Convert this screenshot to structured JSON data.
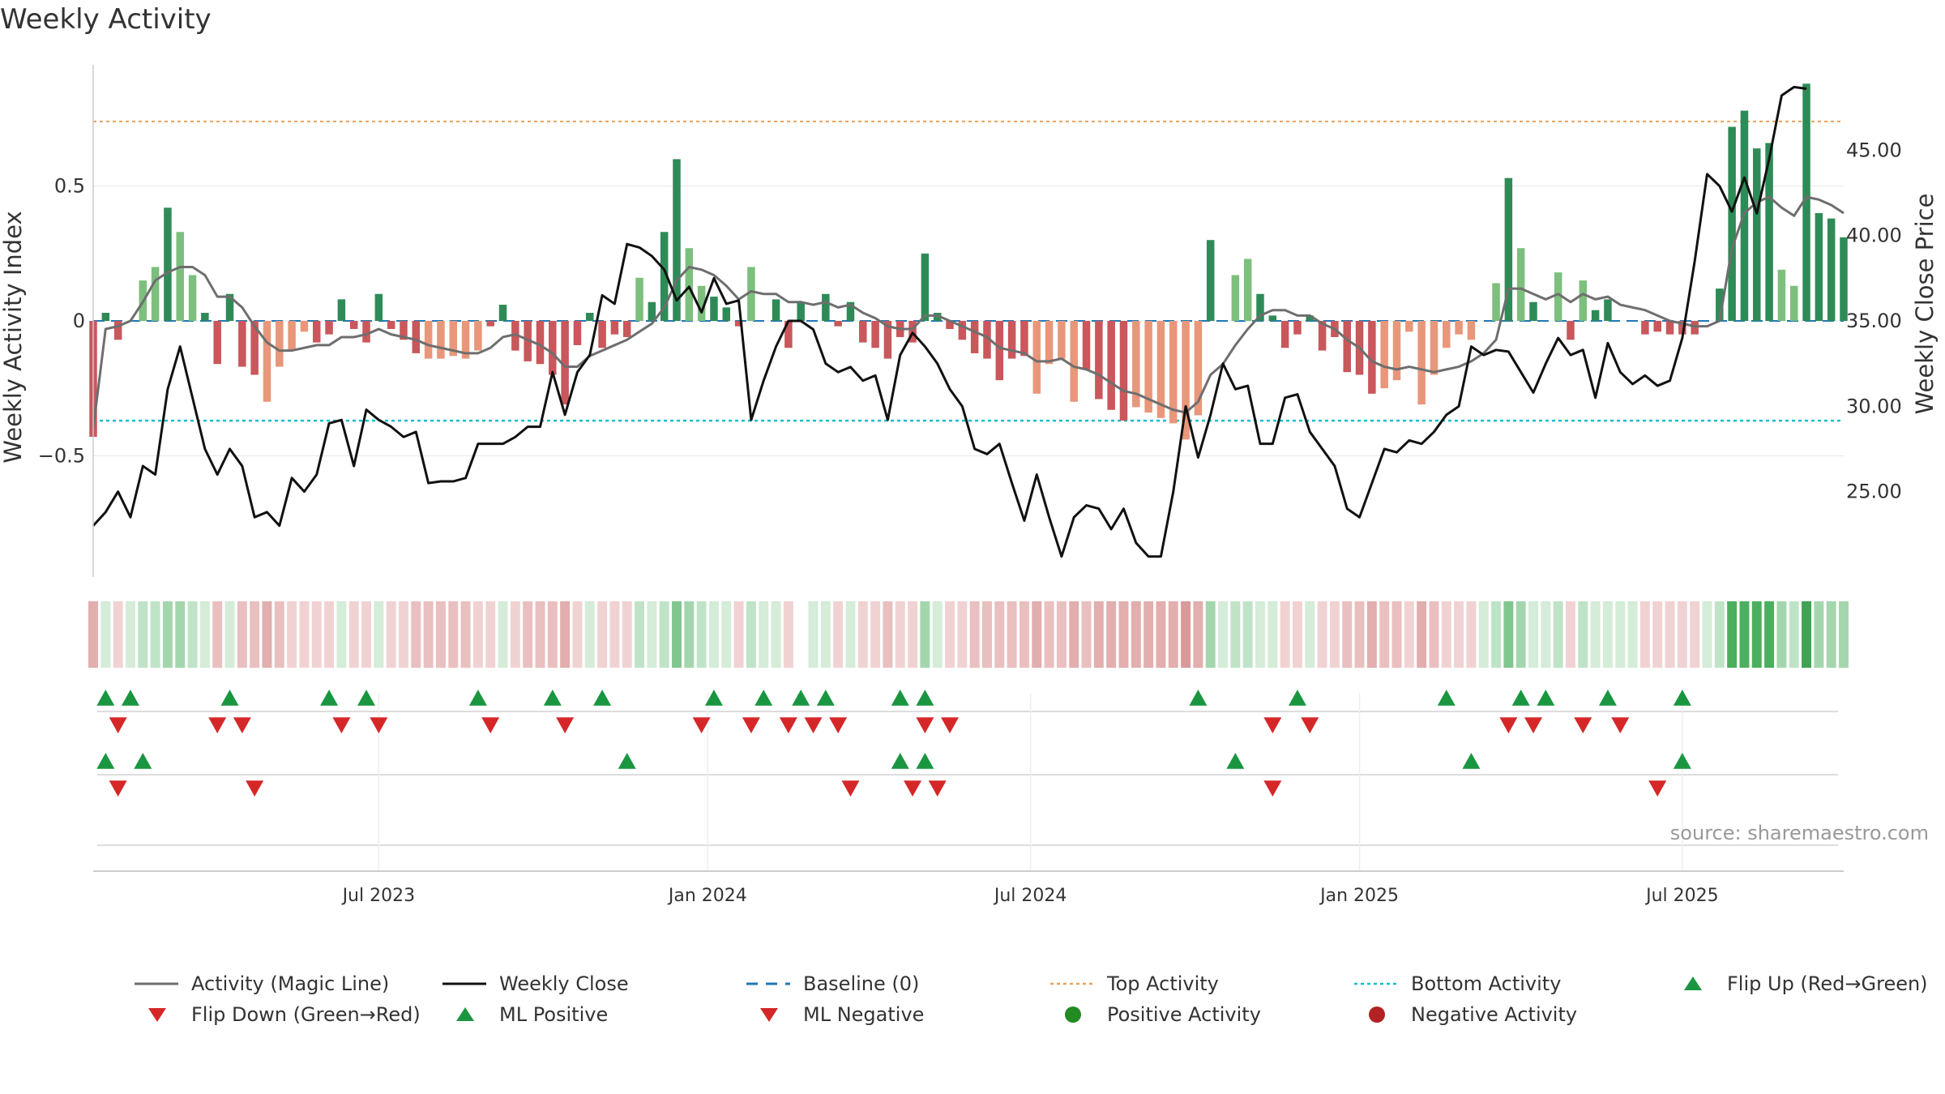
{
  "title": "Weekly Activity",
  "source": "source: sharemaestro.com",
  "legend": [
    {
      "label": "Activity (Magic Line)",
      "icon": "line-gray"
    },
    {
      "label": "Weekly Close",
      "icon": "line-black"
    },
    {
      "label": "Baseline (0)",
      "icon": "dash-blue"
    },
    {
      "label": "Top Activity",
      "icon": "dot-orange"
    },
    {
      "label": "Bottom Activity",
      "icon": "dot-cyan"
    },
    {
      "label": "Flip Up (Red→Green)",
      "icon": "triangle-up-green"
    },
    {
      "label": "Flip Down (Green→Red)",
      "icon": "triangle-down-red"
    },
    {
      "label": "ML Positive",
      "icon": "triangle-up-green"
    },
    {
      "label": "ML Negative",
      "icon": "triangle-down-red"
    },
    {
      "label": "Positive Activity",
      "icon": "circle-green"
    },
    {
      "label": "Negative Activity",
      "icon": "circle-red"
    }
  ],
  "colors": {
    "pos_strong": "#2e8b57",
    "pos_light": "#7dbf7d",
    "neg_strong": "#c9575b",
    "neg_light": "#e8977a",
    "magic_line": "#6e6e6e",
    "close_line": "#111111",
    "baseline": "#1f77b4",
    "top_line": "#e8a25c",
    "bottom_line": "#17becf",
    "up_marker": "#1a9641",
    "down_marker": "#d62728"
  },
  "chart_data": {
    "type": "bar",
    "title": "Weekly Activity",
    "ylabel": "Weekly Activity Index",
    "y2label": "Weekly Close Price",
    "ylim": [
      -0.95,
      0.95
    ],
    "y2lim": [
      20.0,
      50.0
    ],
    "y_ticks": [
      -0.5,
      0,
      0.5
    ],
    "y_tick_labels": [
      "−0.5",
      "0",
      "0.5"
    ],
    "y2_ticks": [
      25.0,
      30.0,
      35.0,
      40.0,
      45.0
    ],
    "y2_tick_labels": [
      "25.00",
      "30.00",
      "35.00",
      "40.00",
      "45.00"
    ],
    "x_ticks": [
      {
        "label": "Jul 2023",
        "week": 23
      },
      {
        "label": "Jan 2024",
        "week": 49.5
      },
      {
        "label": "Jul 2024",
        "week": 75.5
      },
      {
        "label": "Jan 2025",
        "week": 102
      },
      {
        "label": "Jul 2025",
        "week": 128
      }
    ],
    "top_activity": 0.74,
    "bottom_activity": -0.37,
    "baseline": 0,
    "grid": true,
    "legend_position": "bottom",
    "activity": [
      -0.43,
      0.03,
      -0.07,
      0.0,
      0.15,
      0.2,
      0.42,
      0.33,
      0.17,
      0.03,
      -0.16,
      0.1,
      -0.17,
      -0.2,
      -0.3,
      -0.17,
      -0.11,
      -0.04,
      -0.08,
      -0.05,
      0.08,
      -0.03,
      -0.08,
      0.1,
      -0.03,
      -0.07,
      -0.12,
      -0.14,
      -0.14,
      -0.13,
      -0.14,
      -0.11,
      -0.02,
      0.06,
      -0.11,
      -0.15,
      -0.16,
      -0.2,
      -0.31,
      -0.09,
      0.03,
      -0.1,
      -0.05,
      -0.06,
      0.16,
      0.07,
      0.33,
      0.6,
      0.27,
      0.13,
      0.09,
      0.05,
      -0.02,
      0.2,
      0.0,
      0.08,
      -0.1,
      0.07,
      0.0,
      0.1,
      -0.02,
      0.07,
      -0.08,
      -0.1,
      -0.14,
      -0.06,
      -0.08,
      0.25,
      0.03,
      -0.03,
      -0.07,
      -0.12,
      -0.14,
      -0.22,
      -0.14,
      -0.13,
      -0.27,
      -0.16,
      -0.14,
      -0.3,
      -0.18,
      -0.29,
      -0.33,
      -0.37,
      -0.32,
      -0.34,
      -0.36,
      -0.38,
      -0.44,
      -0.35,
      0.3,
      0.0,
      0.17,
      0.23,
      0.1,
      0.02,
      -0.1,
      -0.05,
      0.02,
      -0.11,
      -0.06,
      -0.19,
      -0.2,
      -0.27,
      -0.25,
      -0.22,
      -0.04,
      -0.31,
      -0.2,
      -0.1,
      -0.05,
      -0.07,
      0.0,
      0.14,
      0.53,
      0.27,
      0.07,
      0.0,
      0.18,
      -0.07,
      0.15,
      0.04,
      0.08,
      0.0,
      0.0,
      -0.05,
      -0.04,
      -0.05,
      -0.05,
      -0.05,
      0.0,
      0.12,
      0.72,
      0.78,
      0.64,
      0.66,
      0.19,
      0.13,
      0.88,
      0.4,
      0.38,
      0.31
    ],
    "magic_line": [
      -0.4,
      -0.03,
      -0.02,
      0.0,
      0.07,
      0.15,
      0.18,
      0.2,
      0.2,
      0.17,
      0.09,
      0.09,
      0.05,
      -0.02,
      -0.08,
      -0.11,
      -0.11,
      -0.1,
      -0.09,
      -0.09,
      -0.06,
      -0.06,
      -0.05,
      -0.03,
      -0.05,
      -0.06,
      -0.07,
      -0.09,
      -0.1,
      -0.11,
      -0.12,
      -0.12,
      -0.1,
      -0.06,
      -0.05,
      -0.07,
      -0.09,
      -0.12,
      -0.17,
      -0.17,
      -0.13,
      -0.11,
      -0.09,
      -0.07,
      -0.04,
      -0.01,
      0.05,
      0.15,
      0.2,
      0.19,
      0.17,
      0.13,
      0.08,
      0.11,
      0.1,
      0.1,
      0.07,
      0.07,
      0.06,
      0.07,
      0.05,
      0.06,
      0.03,
      0.01,
      -0.02,
      -0.03,
      -0.03,
      0.02,
      0.02,
      0.0,
      -0.02,
      -0.04,
      -0.06,
      -0.1,
      -0.11,
      -0.12,
      -0.15,
      -0.15,
      -0.14,
      -0.17,
      -0.18,
      -0.2,
      -0.23,
      -0.26,
      -0.27,
      -0.29,
      -0.31,
      -0.33,
      -0.34,
      -0.3,
      -0.2,
      -0.16,
      -0.09,
      -0.03,
      0.02,
      0.04,
      0.04,
      0.02,
      0.02,
      -0.01,
      -0.03,
      -0.07,
      -0.1,
      -0.15,
      -0.17,
      -0.18,
      -0.17,
      -0.18,
      -0.19,
      -0.18,
      -0.17,
      -0.15,
      -0.12,
      -0.07,
      0.12,
      0.12,
      0.1,
      0.08,
      0.1,
      0.07,
      0.1,
      0.08,
      0.09,
      0.06,
      0.05,
      0.04,
      0.02,
      0.0,
      -0.01,
      -0.02,
      -0.02,
      0.0,
      0.27,
      0.4,
      0.44,
      0.46,
      0.42,
      0.39,
      0.46,
      0.45,
      0.43,
      0.4
    ],
    "weekly_close": [
      23.0,
      23.8,
      25.0,
      23.5,
      26.5,
      26.0,
      31.0,
      33.5,
      30.5,
      27.5,
      26.0,
      27.5,
      26.5,
      23.5,
      23.8,
      23.0,
      25.8,
      25.0,
      26.0,
      29.0,
      29.2,
      26.5,
      29.8,
      29.2,
      28.8,
      28.2,
      28.5,
      25.5,
      25.6,
      25.6,
      25.8,
      27.8,
      27.8,
      27.8,
      28.2,
      28.8,
      28.8,
      32.0,
      29.5,
      32.0,
      33.0,
      36.5,
      36.0,
      39.5,
      39.3,
      38.8,
      38.0,
      36.2,
      37.0,
      35.5,
      37.5,
      36.0,
      36.2,
      29.2,
      31.5,
      33.5,
      35.0,
      35.0,
      34.5,
      32.5,
      32.0,
      32.3,
      31.5,
      31.8,
      29.2,
      33.0,
      34.3,
      33.5,
      32.5,
      31.0,
      30.0,
      27.5,
      27.2,
      27.8,
      25.5,
      23.3,
      26.0,
      23.5,
      21.2,
      23.5,
      24.2,
      24.0,
      22.8,
      24.0,
      22.0,
      21.2,
      21.2,
      25.0,
      30.0,
      27.0,
      29.5,
      32.5,
      31.0,
      31.2,
      27.8,
      27.8,
      30.5,
      30.7,
      28.5,
      27.5,
      26.5,
      24.0,
      23.5,
      25.5,
      27.5,
      27.3,
      28.0,
      27.8,
      28.5,
      29.5,
      30.0,
      33.5,
      33.0,
      33.3,
      33.2,
      32.0,
      30.8,
      32.5,
      34.0,
      33.0,
      33.3,
      30.5,
      33.7,
      32.0,
      31.3,
      31.8,
      31.2,
      31.5,
      34.0,
      38.5,
      43.6,
      42.9,
      41.4,
      43.4,
      41.3,
      44.5,
      48.2,
      48.7,
      48.6
    ],
    "heat_strip": [
      -3,
      1,
      -1,
      1,
      2,
      2,
      3,
      3,
      2,
      1,
      -2,
      1,
      -2,
      -2,
      -3,
      -2,
      -1,
      -1,
      -1,
      -1,
      1,
      -1,
      -1,
      1,
      -1,
      -1,
      -2,
      -2,
      -2,
      -2,
      -2,
      -1,
      -1,
      1,
      -1,
      -2,
      -2,
      -2,
      -3,
      -1,
      1,
      -1,
      -1,
      -1,
      2,
      1,
      2,
      4,
      3,
      2,
      1,
      1,
      -1,
      2,
      1,
      1,
      -1,
      null,
      1,
      1,
      -1,
      1,
      -1,
      -1,
      -2,
      -1,
      -1,
      3,
      1,
      -1,
      -1,
      -2,
      -2,
      -2,
      -2,
      -2,
      -3,
      -2,
      -2,
      -3,
      -2,
      -3,
      -3,
      -3,
      -3,
      -3,
      -3,
      -3,
      -4,
      -3,
      3,
      1,
      2,
      2,
      1,
      1,
      -1,
      -1,
      1,
      -1,
      -1,
      -2,
      -2,
      -3,
      -2,
      -2,
      -1,
      -3,
      -2,
      -1,
      -1,
      -1,
      1,
      2,
      4,
      3,
      1,
      1,
      2,
      -1,
      2,
      1,
      1,
      1,
      1,
      -1,
      -1,
      -1,
      -1,
      -1,
      1,
      2,
      5,
      5,
      5,
      5,
      3,
      2,
      6,
      3,
      3,
      3
    ],
    "flip_up": [
      1,
      3,
      11,
      19,
      22,
      31,
      37,
      41,
      50,
      54,
      57,
      59,
      65,
      67,
      89,
      97,
      109,
      115,
      117,
      122,
      128
    ],
    "flip_down": [
      2,
      10,
      12,
      20,
      23,
      32,
      38,
      49,
      53,
      56,
      58,
      60,
      67,
      69,
      95,
      98,
      114,
      116,
      120,
      123
    ],
    "ml_positive": [
      1,
      4,
      43,
      65,
      67,
      92,
      111,
      128
    ],
    "ml_negative": [
      2,
      13,
      61,
      66,
      68,
      95,
      126
    ]
  }
}
